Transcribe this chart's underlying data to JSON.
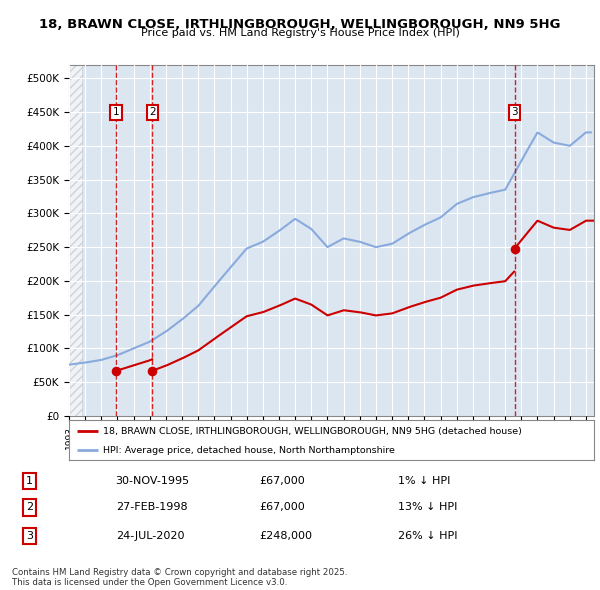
{
  "title_line1": "18, BRAWN CLOSE, IRTHLINGBOROUGH, WELLINGBOROUGH, NN9 5HG",
  "title_line2": "Price paid vs. HM Land Registry's House Price Index (HPI)",
  "ylim": [
    0,
    520000
  ],
  "yticks": [
    0,
    50000,
    100000,
    150000,
    200000,
    250000,
    300000,
    350000,
    400000,
    450000,
    500000
  ],
  "ytick_labels": [
    "£0",
    "£50K",
    "£100K",
    "£150K",
    "£200K",
    "£250K",
    "£300K",
    "£350K",
    "£400K",
    "£450K",
    "£500K"
  ],
  "plot_bg_color": "#dce6f1",
  "grid_color": "#ffffff",
  "sale_prices": [
    67000,
    67000,
    248000
  ],
  "sale_labels": [
    "1",
    "2",
    "3"
  ],
  "legend_line1": "18, BRAWN CLOSE, IRTHLINGBOROUGH, WELLINGBOROUGH, NN9 5HG (detached house)",
  "legend_line2": "HPI: Average price, detached house, North Northamptonshire",
  "footer": "Contains HM Land Registry data © Crown copyright and database right 2025.\nThis data is licensed under the Open Government Licence v3.0.",
  "table_data": [
    [
      "1",
      "30-NOV-1995",
      "£67,000",
      "1% ↓ HPI"
    ],
    [
      "2",
      "27-FEB-1998",
      "£67,000",
      "13% ↓ HPI"
    ],
    [
      "3",
      "24-JUL-2020",
      "£248,000",
      "26% ↓ HPI"
    ]
  ],
  "line_color_sold": "#cc0000",
  "line_color_hpi": "#88aadd",
  "hpi_years": [
    1993,
    1994,
    1995,
    1996,
    1997,
    1998,
    1999,
    2000,
    2001,
    2002,
    2003,
    2004,
    2005,
    2006,
    2007,
    2008,
    2009,
    2010,
    2011,
    2012,
    2013,
    2014,
    2015,
    2016,
    2017,
    2018,
    2019,
    2020,
    2021,
    2022,
    2023,
    2024,
    2025
  ],
  "hpi_values": [
    76000,
    79000,
    83000,
    90000,
    100000,
    110000,
    125000,
    143000,
    163000,
    192000,
    220000,
    248000,
    258000,
    274000,
    292000,
    277000,
    250000,
    263000,
    258000,
    250000,
    255000,
    270000,
    283000,
    294000,
    314000,
    324000,
    330000,
    335000,
    378000,
    420000,
    405000,
    400000,
    420000
  ]
}
